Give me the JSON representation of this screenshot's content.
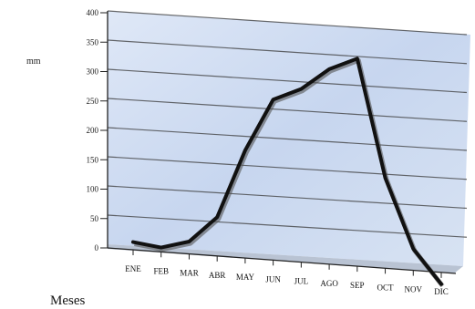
{
  "chart_data": {
    "type": "line",
    "categories": [
      "ENE",
      "FEB",
      "MAR",
      "ABR",
      "MAY",
      "JUN",
      "JUL",
      "AGO",
      "SEP",
      "OCT",
      "NOV",
      "DIC"
    ],
    "series": [
      {
        "values": [
          4,
          -2,
          12,
          58,
          178,
          270,
          292,
          330,
          352,
          148,
          28,
          -30
        ]
      }
    ],
    "yticks": [
      "0",
      "50",
      "100",
      "150",
      "200",
      "250",
      "300",
      "350",
      "400"
    ],
    "ylim": [
      0,
      400
    ],
    "ylabel": "mm",
    "xlabel": "Meses",
    "grid": true,
    "style": "3d-perspective",
    "line_color": "#111111",
    "wall_color": "#c9d8ef"
  }
}
